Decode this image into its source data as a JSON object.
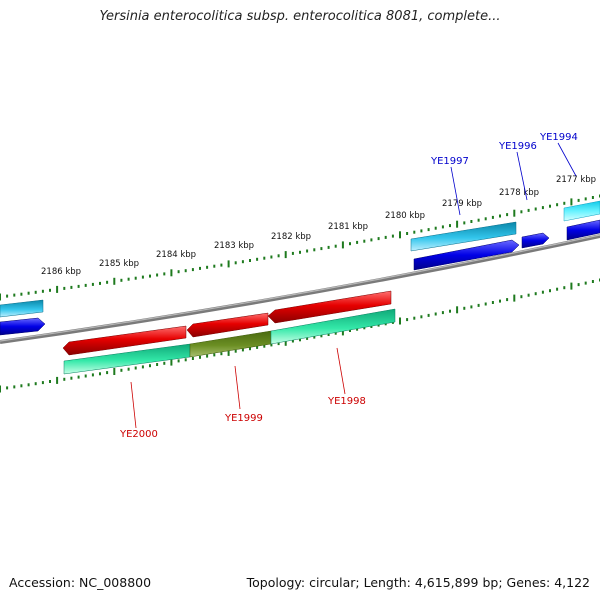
{
  "title": "Yersinia enterocolitica subsp. enterocolitica 8081, complete...",
  "footer": {
    "accession": "Accession: NC_008800",
    "summary": "Topology: circular; Length: 4,615,899 bp; Genes: 4,122"
  },
  "ruler": {
    "labels": [
      "2186 kbp",
      "2185 kbp",
      "2184 kbp",
      "2183 kbp",
      "2182 kbp",
      "2181 kbp",
      "2180 kbp",
      "2179 kbp",
      "2178 kbp",
      "2177 kbp"
    ]
  },
  "gene_labels": [
    {
      "text": "YE1994",
      "color": "#0000cc"
    },
    {
      "text": "YE1996",
      "color": "#0000cc"
    },
    {
      "text": "YE1997",
      "color": "#0000cc"
    },
    {
      "text": "YE1998",
      "color": "#cc0000"
    },
    {
      "text": "YE1999",
      "color": "#cc0000"
    },
    {
      "text": "YE2000",
      "color": "#cc0000"
    }
  ],
  "colors": {
    "forward_cds": "#0000e6",
    "forward_gene": "#22b8e0",
    "reverse_cds": "#e60000",
    "reverse_gene": "#22e0a0",
    "highlight_gene": "#6b8e23",
    "backbone": "#888888",
    "ruler": "#1e7a1e"
  }
}
